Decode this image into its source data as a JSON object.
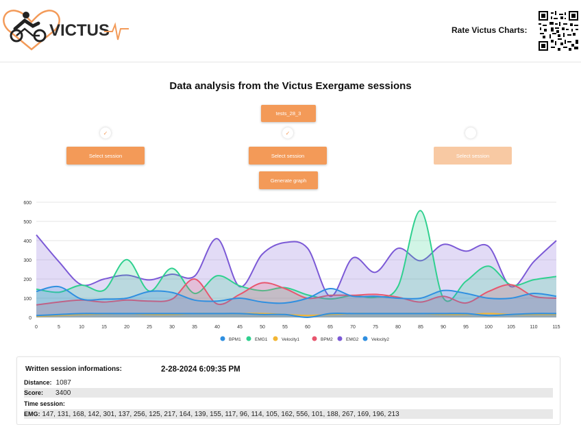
{
  "header": {
    "brand": "VICTUS",
    "rate_label": "Rate Victus Charts:"
  },
  "page_title": "Data analysis from the Victus Exergame sessions",
  "session_tag": "tests_28_3",
  "selectors": [
    {
      "label": "Select session",
      "checked": true,
      "enabled": true
    },
    {
      "label": "Select session",
      "checked": true,
      "enabled": true
    },
    {
      "label": "Select session",
      "checked": false,
      "enabled": false
    }
  ],
  "generate_label": "Generate graph",
  "check_glyph": "✓",
  "chart_data": {
    "type": "area",
    "x_ticks": [
      0,
      5,
      10,
      15,
      20,
      25,
      30,
      35,
      40,
      45,
      50,
      55,
      60,
      65,
      70,
      75,
      80,
      85,
      90,
      95,
      100,
      105,
      110,
      115
    ],
    "y_ticks": [
      0,
      100,
      200,
      300,
      400,
      500,
      600
    ],
    "ylim": [
      0,
      600
    ],
    "xlim": [
      0,
      115
    ],
    "grid": true,
    "legend_position": "bottom",
    "series": [
      {
        "name": "BPM1",
        "color": "#2f8fe0",
        "x": [
          0,
          5,
          10,
          15,
          20,
          25,
          30,
          35,
          40,
          45,
          50,
          55,
          60,
          65,
          70,
          75,
          80,
          85,
          90,
          95,
          100,
          105,
          110,
          115
        ],
        "values": [
          135,
          160,
          95,
          95,
          100,
          135,
          130,
          90,
          85,
          100,
          80,
          75,
          100,
          150,
          110,
          110,
          100,
          100,
          140,
          125,
          100,
          100,
          125,
          110
        ]
      },
      {
        "name": "EMG1",
        "color": "#2fd08f",
        "x": [
          0,
          5,
          10,
          15,
          20,
          25,
          30,
          35,
          40,
          45,
          50,
          55,
          60,
          65,
          70,
          75,
          80,
          85,
          90,
          95,
          100,
          105,
          110,
          115
        ],
        "values": [
          147,
          131,
          168,
          142,
          301,
          137,
          256,
          125,
          217,
          164,
          139,
          155,
          117,
          96,
          114,
          105,
          162,
          556,
          101,
          188,
          267,
          169,
          196,
          213
        ]
      },
      {
        "name": "Velocity1",
        "color": "#f2b634",
        "x": [
          0,
          5,
          10,
          15,
          20,
          25,
          30,
          35,
          40,
          45,
          50,
          55,
          60,
          65,
          70,
          75,
          80,
          85,
          90,
          95,
          100,
          105,
          110,
          115
        ],
        "values": [
          5,
          10,
          15,
          18,
          20,
          15,
          15,
          20,
          20,
          20,
          20,
          15,
          10,
          15,
          20,
          20,
          20,
          20,
          15,
          15,
          20,
          15,
          15,
          15
        ]
      },
      {
        "name": "BPM2",
        "color": "#e8566e",
        "x": [
          0,
          5,
          10,
          15,
          20,
          25,
          30,
          35,
          40,
          45,
          50,
          55,
          60,
          65,
          70,
          75,
          80,
          85,
          90,
          95,
          100,
          105,
          110,
          115
        ],
        "values": [
          65,
          80,
          90,
          80,
          90,
          85,
          95,
          200,
          70,
          120,
          180,
          150,
          100,
          115,
          115,
          120,
          105,
          80,
          110,
          75,
          135,
          170,
          110,
          100
        ]
      },
      {
        "name": "EMG2",
        "color": "#7b59d6",
        "x": [
          0,
          5,
          10,
          15,
          20,
          25,
          30,
          35,
          40,
          45,
          50,
          55,
          60,
          65,
          70,
          75,
          80,
          85,
          90,
          95,
          100,
          105,
          110,
          115
        ],
        "values": [
          430,
          290,
          170,
          200,
          220,
          195,
          225,
          215,
          410,
          160,
          330,
          390,
          360,
          110,
          310,
          235,
          360,
          295,
          380,
          345,
          370,
          160,
          290,
          400
        ]
      },
      {
        "name": "Velocity2",
        "color": "#2f8fe0",
        "x": [
          0,
          5,
          10,
          15,
          20,
          25,
          30,
          35,
          40,
          45,
          50,
          55,
          60,
          65,
          70,
          75,
          80,
          85,
          90,
          95,
          100,
          105,
          110,
          115
        ],
        "values": [
          10,
          15,
          20,
          20,
          20,
          20,
          20,
          20,
          20,
          20,
          15,
          15,
          0,
          20,
          20,
          20,
          20,
          20,
          20,
          20,
          10,
          15,
          20,
          20
        ]
      }
    ]
  },
  "info": {
    "title": "Written session informations:",
    "date": "2-28-2024 6:09:35 PM",
    "rows": [
      {
        "key": "Distance:",
        "value": "1087"
      },
      {
        "key": "Score:",
        "value": "3400"
      },
      {
        "key": "Time session:",
        "value": ""
      },
      {
        "key": "EMG:",
        "value": "147, 131, 168, 142, 301, 137, 256, 125, 217, 164, 139, 155, 117, 96, 114, 105, 162, 556, 101, 188, 267, 169, 196, 213"
      }
    ]
  }
}
